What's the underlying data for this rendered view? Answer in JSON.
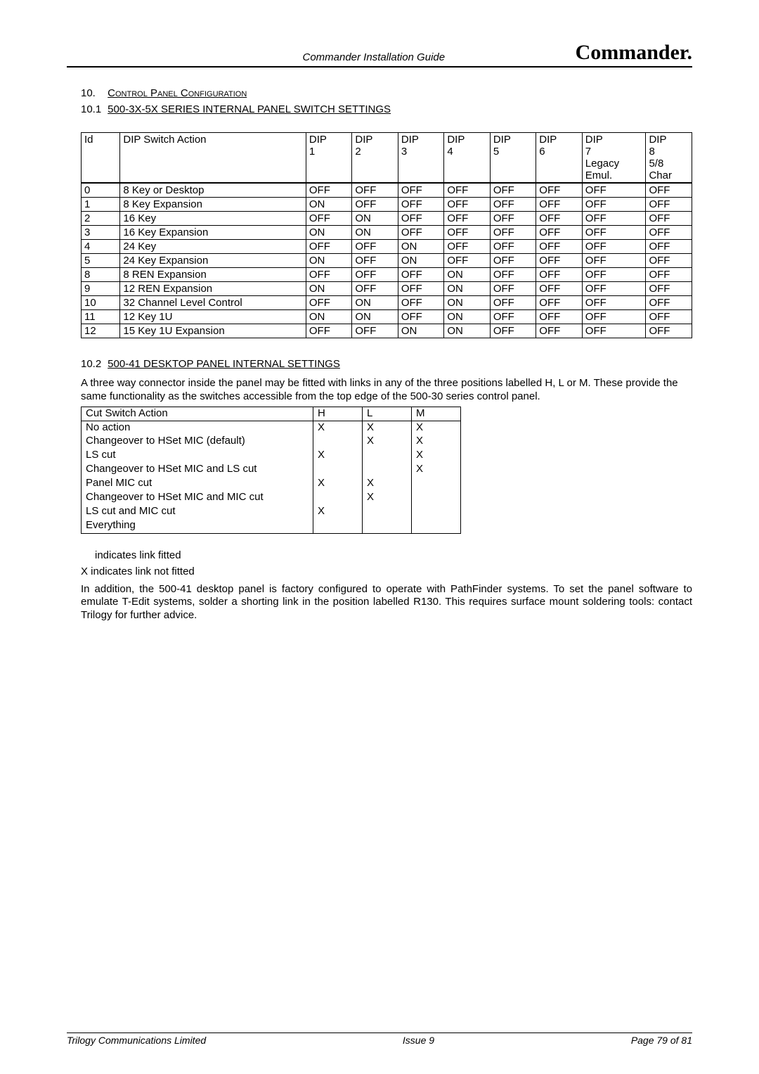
{
  "header": {
    "center": "Commander Installation Guide",
    "logo": "Commander."
  },
  "section10": {
    "num": "10.",
    "title": "Control Panel Configuration"
  },
  "sub101": {
    "num": "10.1",
    "title": "500-3X-5X SERIES INTERNAL PANEL SWITCH SETTINGS"
  },
  "t1": {
    "head": {
      "id": "Id",
      "action": "DIP Switch Action",
      "d1a": "DIP",
      "d1b": "1",
      "d2a": "DIP",
      "d2b": "2",
      "d3a": "DIP",
      "d3b": "3",
      "d4a": "DIP",
      "d4b": "4",
      "d5a": "DIP",
      "d5b": "5",
      "d6a": "DIP",
      "d6b": "6",
      "d7a": "DIP",
      "d7b": "7",
      "d7c": "Legacy",
      "d7d": "Emul.",
      "d8a": "DIP",
      "d8b": "8",
      "d8c": "5/8",
      "d8d": "Char"
    },
    "rows": [
      {
        "id": "0",
        "a": "8 Key or Desktop",
        "d": [
          "OFF",
          "OFF",
          "OFF",
          "OFF",
          "OFF",
          "OFF",
          "OFF",
          "OFF"
        ]
      },
      {
        "id": "1",
        "a": "8 Key Expansion",
        "d": [
          "ON",
          "OFF",
          "OFF",
          "OFF",
          "OFF",
          "OFF",
          "OFF",
          "OFF"
        ]
      },
      {
        "id": "2",
        "a": "16 Key",
        "d": [
          "OFF",
          "ON",
          "OFF",
          "OFF",
          "OFF",
          "OFF",
          "OFF",
          "OFF"
        ]
      },
      {
        "id": "3",
        "a": "16 Key Expansion",
        "d": [
          "ON",
          "ON",
          "OFF",
          "OFF",
          "OFF",
          "OFF",
          "OFF",
          "OFF"
        ]
      },
      {
        "id": "4",
        "a": "24 Key",
        "d": [
          "OFF",
          "OFF",
          "ON",
          "OFF",
          "OFF",
          "OFF",
          "OFF",
          "OFF"
        ]
      },
      {
        "id": "5",
        "a": "24 Key Expansion",
        "d": [
          "ON",
          "OFF",
          "ON",
          "OFF",
          "OFF",
          "OFF",
          "OFF",
          "OFF"
        ]
      },
      {
        "id": "8",
        "a": "8 REN Expansion",
        "d": [
          "OFF",
          "OFF",
          "OFF",
          "ON",
          "OFF",
          "OFF",
          "OFF",
          "OFF"
        ]
      },
      {
        "id": "9",
        "a": "12 REN Expansion",
        "d": [
          "ON",
          "OFF",
          "OFF",
          "ON",
          "OFF",
          "OFF",
          "OFF",
          "OFF"
        ]
      },
      {
        "id": "10",
        "a": "32 Channel Level Control",
        "d": [
          "OFF",
          "ON",
          "OFF",
          "ON",
          "OFF",
          "OFF",
          "OFF",
          "OFF"
        ]
      },
      {
        "id": "11",
        "a": "12 Key 1U",
        "d": [
          "ON",
          "ON",
          "OFF",
          "ON",
          "OFF",
          "OFF",
          "OFF",
          "OFF"
        ]
      },
      {
        "id": "12",
        "a": "15 Key 1U Expansion",
        "d": [
          "OFF",
          "OFF",
          "ON",
          "ON",
          "OFF",
          "OFF",
          "OFF",
          "OFF"
        ]
      }
    ]
  },
  "sub102": {
    "num": "10.2",
    "title": "500-41 DESKTOP PANEL INTERNAL SETTINGS"
  },
  "para102": "A three way connector inside the panel may be fitted with links in any of the three positions labelled H, L or M. These provide the same functionality as the switches accessible from the top edge of the 500-30 series control panel.",
  "t2": {
    "head": {
      "a": "Cut Switch Action",
      "h": "H",
      "l": "L",
      "m": "M"
    },
    "rows": [
      {
        "a": "No action",
        "h": "X",
        "l": "X",
        "m": "X"
      },
      {
        "a": "Changeover to HSet MIC (default)",
        "h": "",
        "l": "X",
        "m": "X"
      },
      {
        "a": "LS cut",
        "h": "X",
        "l": "",
        "m": "X"
      },
      {
        "a": "Changeover to HSet MIC and LS cut",
        "h": "",
        "l": "",
        "m": "X"
      },
      {
        "a": "Panel MIC cut",
        "h": "X",
        "l": "X",
        "m": ""
      },
      {
        "a": "Changeover to HSet MIC and MIC cut",
        "h": "",
        "l": "X",
        "m": ""
      },
      {
        "a": "LS cut and MIC cut",
        "h": "X",
        "l": "",
        "m": ""
      },
      {
        "a": "Everything",
        "h": "",
        "l": "",
        "m": ""
      }
    ]
  },
  "note1": " indicates link fitted",
  "note2": "X indicates link not fitted",
  "body1": "In addition, the 500-41 desktop panel is factory configured to operate with PathFinder systems. To set the panel software to emulate T-Edit systems, solder a shorting link in the position labelled R130.  This requires surface mount soldering tools: contact Trilogy for further advice.",
  "footer": {
    "left": "Trilogy Communications Limited",
    "center": "Issue 9",
    "right": "Page 79 of 81"
  }
}
